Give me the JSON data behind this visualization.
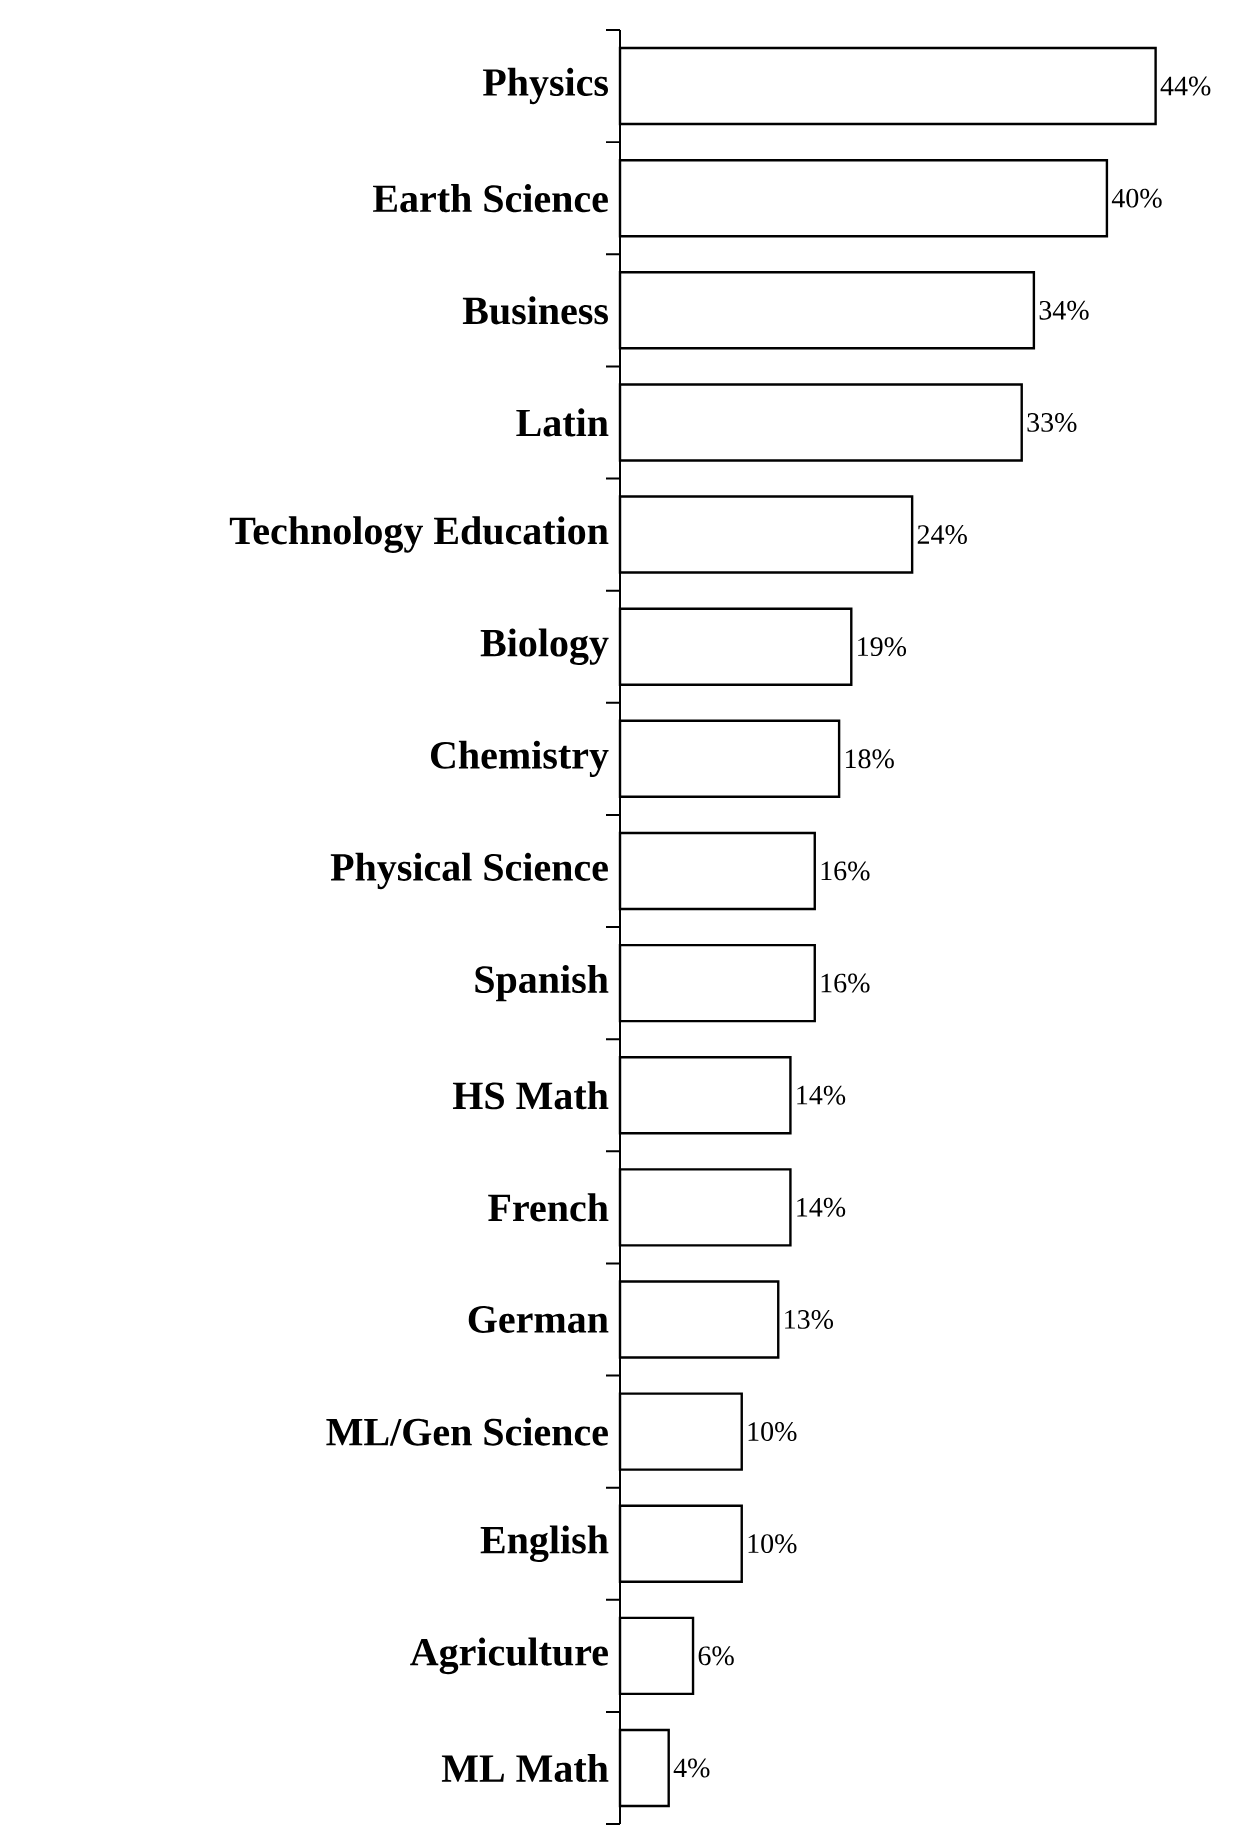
{
  "chart_data": {
    "type": "bar",
    "orientation": "horizontal",
    "categories": [
      "Physics",
      "Earth Science",
      "Business",
      "Latin",
      "Technology Education",
      "Biology",
      "Chemistry",
      "Physical Science",
      "Spanish",
      "HS Math",
      "French",
      "German",
      "ML/Gen Science",
      "English",
      "Agriculture",
      "ML Math"
    ],
    "values": [
      44,
      40,
      34,
      33,
      24,
      19,
      18,
      16,
      16,
      14,
      14,
      13,
      10,
      10,
      6,
      4
    ],
    "value_labels": [
      "44%",
      "40%",
      "34%",
      "33%",
      "24%",
      "19%",
      "18%",
      "16%",
      "16%",
      "14%",
      "14%",
      "13%",
      "10%",
      "10%",
      "6%",
      "4%"
    ],
    "color": "#ffffff",
    "tick_labels": "y"
  }
}
